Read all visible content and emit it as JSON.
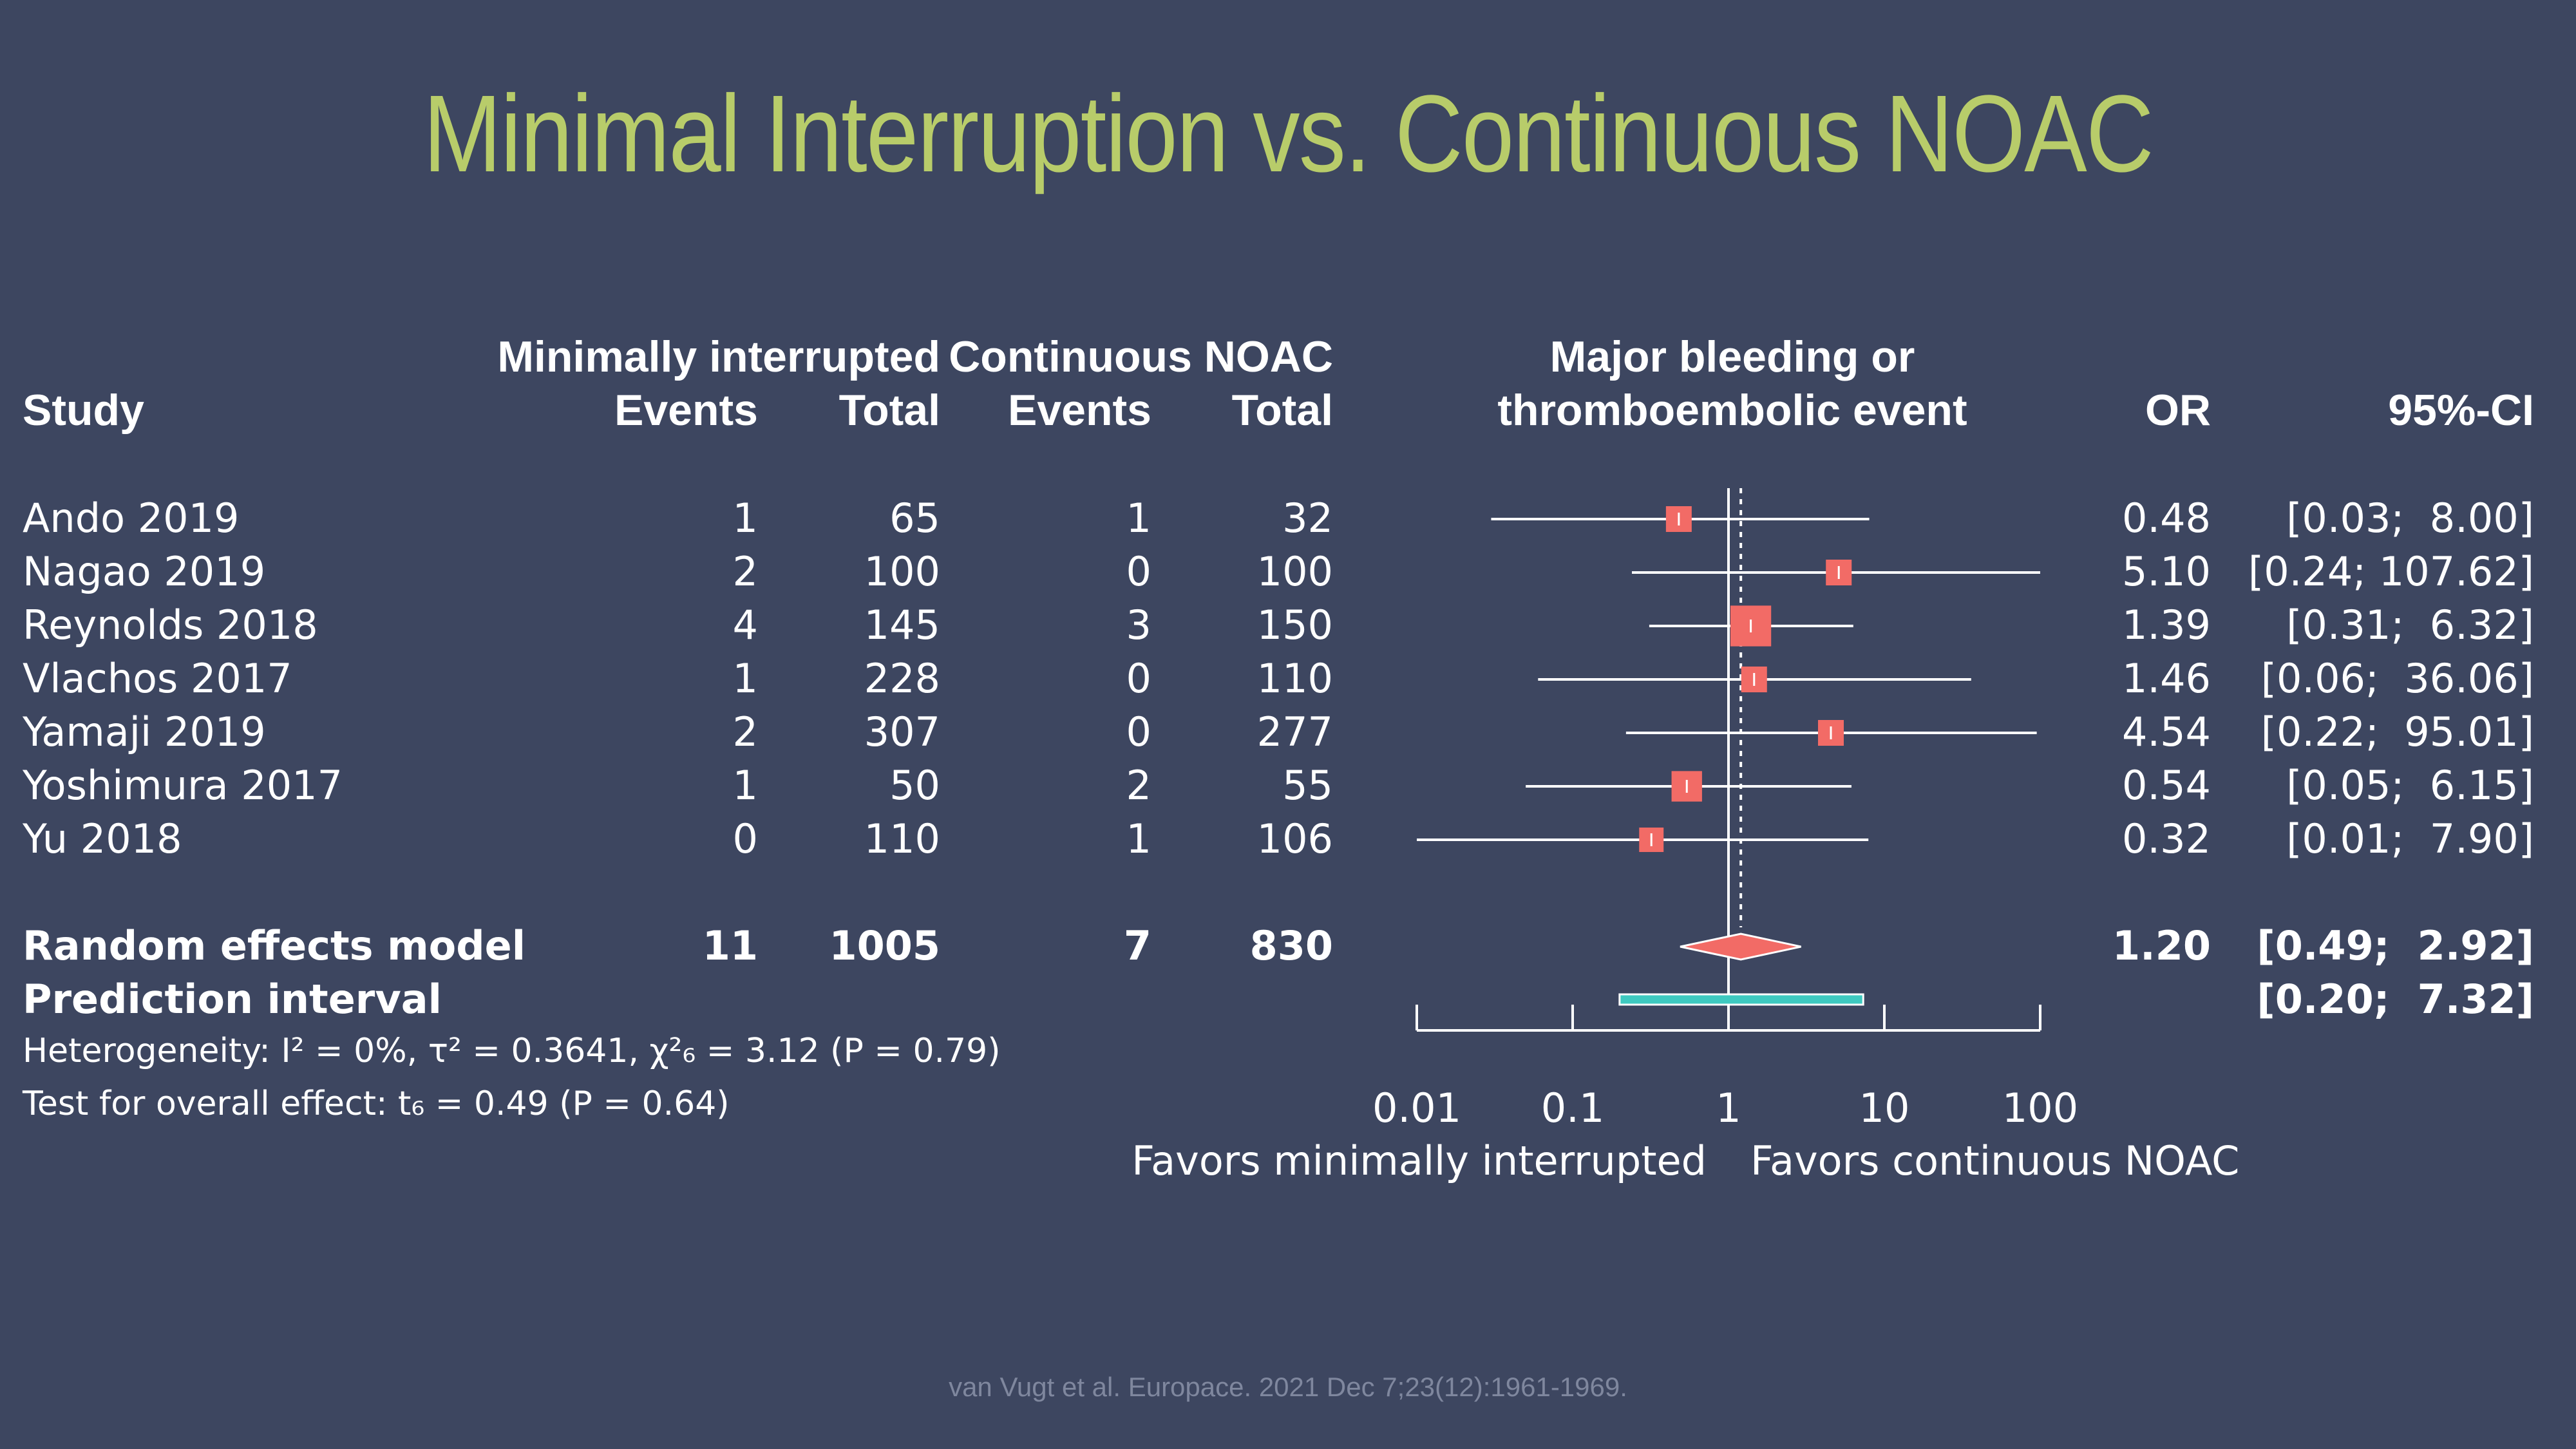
{
  "title": "Minimal Interruption vs. Continuous NOAC",
  "headers": {
    "group1": "Minimally interrupted",
    "group2": "Continuous NOAC",
    "outcome_line1": "Major bleeding or",
    "outcome_line2": "thromboembolic event",
    "study": "Study",
    "events": "Events",
    "total": "Total",
    "or": "OR",
    "ci": "95%-CI"
  },
  "studies": [
    {
      "name": "Ando 2019",
      "e1": "1",
      "t1": "65",
      "e2": "1",
      "t2": "32",
      "or": "0.48",
      "ci": "[0.03;  8.00]"
    },
    {
      "name": "Nagao 2019",
      "e1": "2",
      "t1": "100",
      "e2": "0",
      "t2": "100",
      "or": "5.10",
      "ci": "[0.24; 107.62]"
    },
    {
      "name": "Reynolds 2018",
      "e1": "4",
      "t1": "145",
      "e2": "3",
      "t2": "150",
      "or": "1.39",
      "ci": "[0.31;  6.32]"
    },
    {
      "name": "Vlachos 2017",
      "e1": "1",
      "t1": "228",
      "e2": "0",
      "t2": "110",
      "or": "1.46",
      "ci": "[0.06;  36.06]"
    },
    {
      "name": "Yamaji 2019",
      "e1": "2",
      "t1": "307",
      "e2": "0",
      "t2": "277",
      "or": "4.54",
      "ci": "[0.22;  95.01]"
    },
    {
      "name": "Yoshimura 2017",
      "e1": "1",
      "t1": "50",
      "e2": "2",
      "t2": "55",
      "or": "0.54",
      "ci": "[0.05;  6.15]"
    },
    {
      "name": "Yu 2018",
      "e1": "0",
      "t1": "110",
      "e2": "1",
      "t2": "106",
      "or": "0.32",
      "ci": "[0.01;  7.90]"
    }
  ],
  "random": {
    "label": "Random effects model",
    "e1": "11",
    "t1": "1005",
    "e2": "7",
    "t2": "830",
    "or": "1.20",
    "ci": "[0.49;  2.92]"
  },
  "prediction": {
    "label": "Prediction interval",
    "ci": "[0.20;  7.32]"
  },
  "heterogeneity": "Heterogeneity: I² = 0%, τ² = 0.3641, χ²₆ = 3.12 (P = 0.79)",
  "overall_test": "Test for overall effect: t₆ = 0.49 (P = 0.64)",
  "favors_left": "Favors minimally interrupted",
  "favors_right": "Favors continuous NOAC",
  "source": "van Vugt et al. Europace. 2021 Dec 7;23(12):1961-1969.",
  "colors": {
    "background": "#3d4660",
    "title": "#b8cc6a",
    "marker": "#f26b66",
    "prediction": "#3ec9c0",
    "text": "#ffffff"
  },
  "chart_data": {
    "type": "forest",
    "scale": "log",
    "x_ticks": [
      "0.01",
      "0.1",
      "1",
      "10",
      "100"
    ],
    "x_tick_values": [
      0.01,
      0.1,
      1,
      10,
      100
    ],
    "null_value": 1,
    "pooled_estimate_line": 1.2,
    "studies": [
      {
        "study": "Ando 2019",
        "or": 0.48,
        "lower": 0.03,
        "upper": 8.0,
        "weight": 1.0
      },
      {
        "study": "Nagao 2019",
        "or": 5.1,
        "lower": 0.24,
        "upper": 107.62,
        "weight": 1.0
      },
      {
        "study": "Reynolds 2018",
        "or": 1.39,
        "lower": 0.31,
        "upper": 6.32,
        "weight": 2.5
      },
      {
        "study": "Vlachos 2017",
        "or": 1.46,
        "lower": 0.06,
        "upper": 36.06,
        "weight": 1.0
      },
      {
        "study": "Yamaji 2019",
        "or": 4.54,
        "lower": 0.22,
        "upper": 95.01,
        "weight": 1.0
      },
      {
        "study": "Yoshimura 2017",
        "or": 0.54,
        "lower": 0.05,
        "upper": 6.15,
        "weight": 1.4
      },
      {
        "study": "Yu 2018",
        "or": 0.32,
        "lower": 0.01,
        "upper": 7.9,
        "weight": 0.9
      }
    ],
    "pooled": {
      "or": 1.2,
      "lower": 0.49,
      "upper": 2.92
    },
    "prediction_interval": {
      "lower": 0.2,
      "upper": 7.32
    }
  }
}
